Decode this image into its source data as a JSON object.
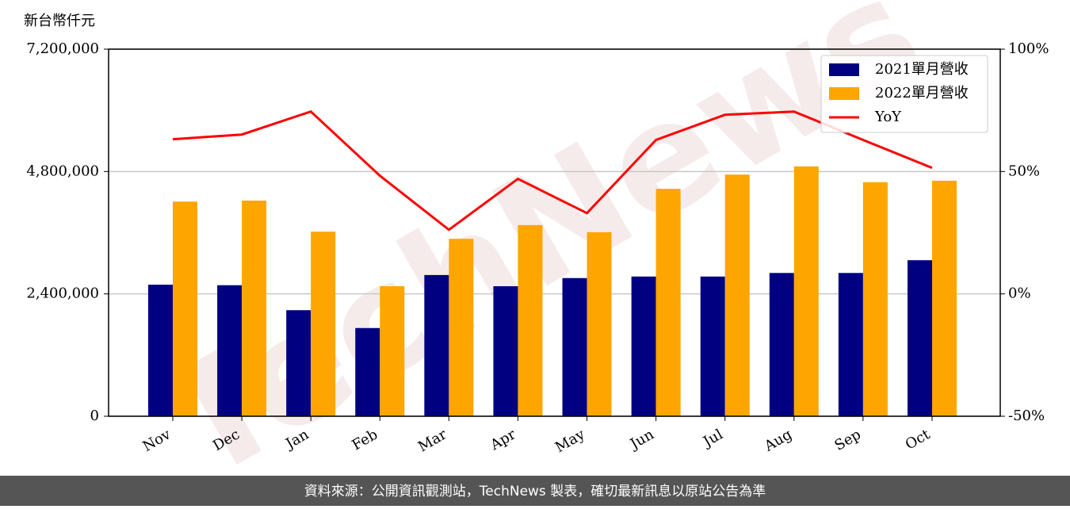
{
  "chart_data": {
    "type": "bar",
    "y_label": "新台幣仟元",
    "watermark": "TechNews",
    "source": "資料來源：公開資訊觀測站，TechNews 製表，確切最新訊息以原站公告為準",
    "categories": [
      "Nov",
      "Dec",
      "Jan",
      "Feb",
      "Mar",
      "Apr",
      "May",
      "Jun",
      "Jul",
      "Aug",
      "Sep",
      "Oct"
    ],
    "series": [
      {
        "name": "2021單月營收",
        "color": "#000080",
        "values": [
          2580000,
          2570000,
          2080000,
          1730000,
          2770000,
          2550000,
          2710000,
          2740000,
          2740000,
          2810000,
          2810000,
          3060000
        ]
      },
      {
        "name": "2022單月營收",
        "color": "#ffa500",
        "values": [
          4210000,
          4230000,
          3620000,
          2550000,
          3480000,
          3750000,
          3610000,
          4460000,
          4740000,
          4900000,
          4590000,
          4620000
        ]
      },
      {
        "name": "YoY",
        "color": "#ff0000",
        "type": "line",
        "axis": "y2",
        "values": [
          63.2,
          65.1,
          74.5,
          48.3,
          26.2,
          47.0,
          33.0,
          62.9,
          73.2,
          74.5,
          62.9,
          51.5
        ]
      }
    ],
    "ylim": [
      0,
      7200000
    ],
    "yticks": [
      0,
      {
        "value": 2400000,
        "label": "2,400,000"
      },
      {
        "value": 4800000,
        "label": "4,800,000"
      },
      {
        "value": 7200000,
        "label": "7,200,000"
      }
    ],
    "y2lim": [
      -50,
      100
    ],
    "y2ticks": [
      {
        "value": -50,
        "label": "-50%"
      },
      {
        "value": 0,
        "label": "0%"
      },
      {
        "value": 50,
        "label": "50%"
      },
      {
        "value": 100,
        "label": "100%"
      }
    ],
    "grid": true,
    "legend": "upper right"
  }
}
